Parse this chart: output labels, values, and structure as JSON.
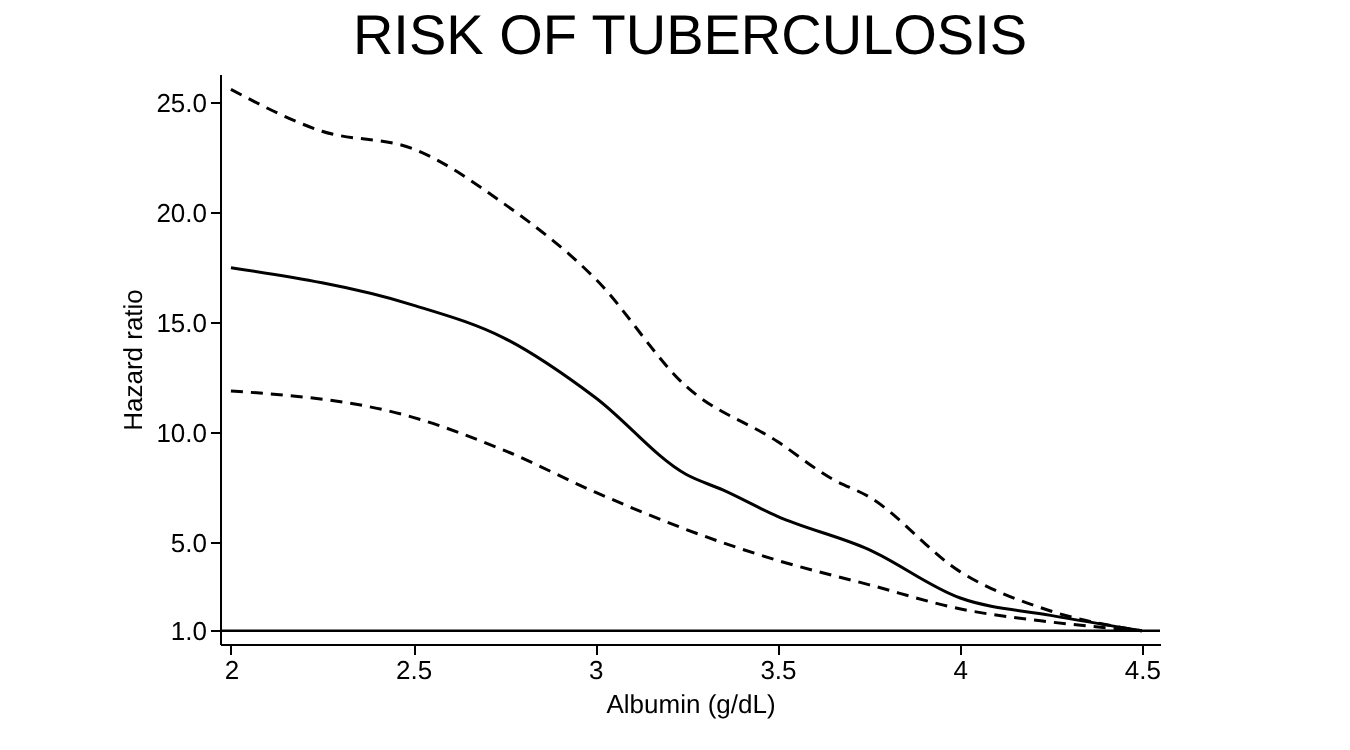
{
  "chart_data": {
    "type": "line",
    "title": "RISK OF TUBERCULOSIS",
    "xlabel": "Albumin (g/dL)",
    "ylabel": "Hazard ratio",
    "xlim": [
      1.97,
      4.55
    ],
    "xticks": [
      2,
      2.5,
      3,
      3.5,
      4,
      4.5
    ],
    "ylim": [
      0.4,
      26.3
    ],
    "yticks": [
      {
        "value": 1,
        "label": "1.0"
      },
      {
        "value": 5,
        "label": "5.0"
      },
      {
        "value": 10,
        "label": "10.0"
      },
      {
        "value": 15,
        "label": "15.0"
      },
      {
        "value": 20,
        "label": "20.0"
      },
      {
        "value": 25,
        "label": "25.0"
      }
    ],
    "grid": false,
    "marker": "none",
    "series": [
      {
        "color": "#000000",
        "line_style": "dashed",
        "x": [
          2,
          2.25,
          2.5,
          2.75,
          3,
          3.25,
          3.5,
          3.65,
          3.75,
          4,
          4.25,
          4.5
        ],
        "values": [
          25.6,
          23.7,
          22.9,
          20.4,
          17.0,
          12.1,
          9.6,
          7.9,
          7.1,
          3.7,
          1.9,
          1.0
        ]
      },
      {
        "color": "#000000",
        "line_style": "solid",
        "x": [
          2,
          2.5,
          2.75,
          3,
          3.25,
          3.35,
          3.5,
          3.75,
          4,
          4.25,
          4.5
        ],
        "values": [
          17.5,
          15.8,
          14.3,
          11.6,
          8.1,
          7.4,
          6.2,
          4.7,
          2.5,
          1.7,
          1.0
        ]
      },
      {
        "color": "#000000",
        "line_style": "dashed",
        "x": [
          2,
          2.5,
          2.75,
          3,
          3.25,
          3.5,
          3.75,
          4,
          4.25,
          4.5
        ],
        "values": [
          11.9,
          10.7,
          9.2,
          7.3,
          5.6,
          4.2,
          3.1,
          2.0,
          1.4,
          1.0
        ]
      }
    ],
    "ref_lines": [
      {
        "axis": "y",
        "value": 1,
        "color": "#000000",
        "line_style": "solid"
      }
    ]
  }
}
